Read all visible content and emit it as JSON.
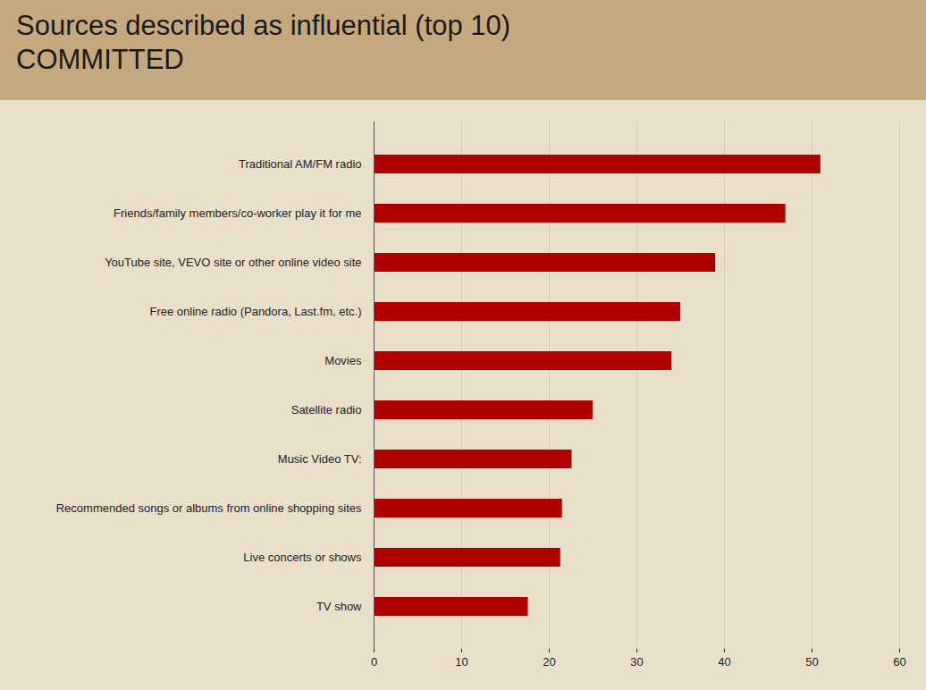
{
  "chart_data": {
    "type": "bar",
    "orientation": "horizontal",
    "title": "Sources described as influential (top 10)",
    "subtitle": "COMMITTED",
    "categories": [
      "Traditional AM/FM radio",
      "Friends/family members/co-worker play it for me",
      "YouTube site, VEVO site or other online video site",
      "Free online radio (Pandora, Last.fm, etc.)",
      "Movies",
      "Satellite radio",
      "Music Video TV:",
      "Recommended songs or albums from online shopping sites",
      "Live concerts or shows",
      "TV show"
    ],
    "values": [
      51,
      47,
      39,
      35,
      34,
      25,
      22.6,
      21.5,
      21.3,
      17.6
    ],
    "color": "#b00000",
    "xlim": [
      0,
      60
    ],
    "xticks": [
      0,
      10,
      20,
      30,
      40,
      50,
      60
    ],
    "grid": true
  }
}
